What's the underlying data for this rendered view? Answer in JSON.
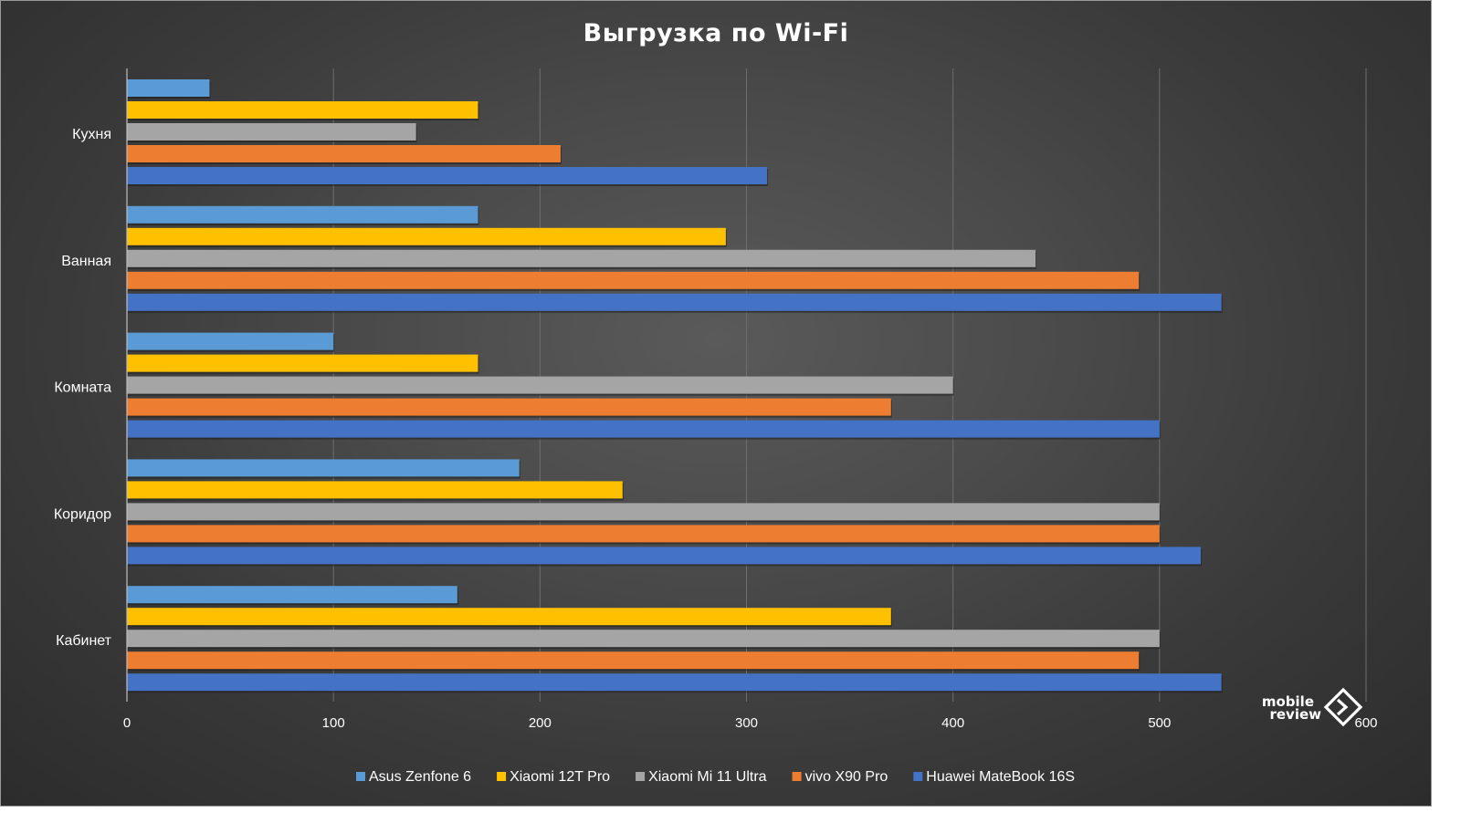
{
  "chart_data": {
    "type": "bar",
    "orientation": "horizontal",
    "title": "Выгрузка по Wi-Fi",
    "categories": [
      "Кухня",
      "Ванная",
      "Комната",
      "Коридор",
      "Кабинет"
    ],
    "series": [
      {
        "name": "Asus Zenfone 6",
        "color": "#5b9bd5",
        "values": [
          40,
          170,
          100,
          190,
          160
        ]
      },
      {
        "name": "Xiaomi 12T Pro",
        "color": "#ffc000",
        "values": [
          170,
          290,
          170,
          240,
          370
        ]
      },
      {
        "name": "Xiaomi Mi 11 Ultra",
        "color": "#a5a5a5",
        "values": [
          140,
          440,
          400,
          500,
          500
        ]
      },
      {
        "name": "vivo X90 Pro",
        "color": "#ed7d31",
        "values": [
          210,
          490,
          370,
          500,
          490
        ]
      },
      {
        "name": "Huawei MateBook 16S",
        "color": "#4472c4",
        "values": [
          310,
          530,
          500,
          520,
          530
        ]
      }
    ],
    "xlim": [
      0,
      600
    ],
    "xticks": [
      "0",
      "100",
      "200",
      "300",
      "400",
      "500",
      "600"
    ],
    "grid": true,
    "legend_position": "bottom"
  },
  "logo": {
    "line1": "mobile",
    "line2": "review"
  }
}
